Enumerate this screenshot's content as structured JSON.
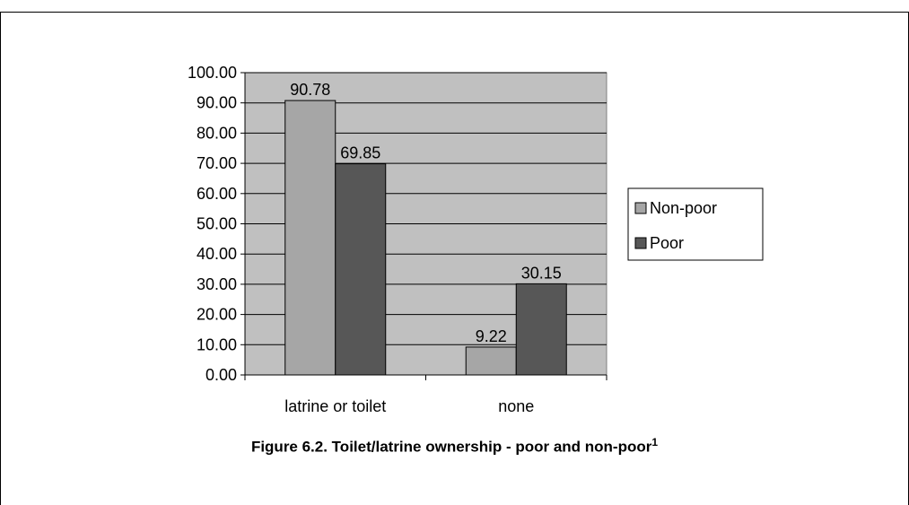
{
  "chart_data": {
    "type": "bar",
    "categories": [
      "latrine or toilet",
      "none"
    ],
    "series": [
      {
        "name": "Non-poor",
        "values": [
          90.78,
          9.22
        ],
        "color": "#a6a6a6"
      },
      {
        "name": "Poor",
        "values": [
          69.85,
          30.15
        ],
        "color": "#575757"
      }
    ],
    "ylim": [
      0,
      100
    ],
    "yticks": [
      "0.00",
      "10.00",
      "20.00",
      "30.00",
      "40.00",
      "50.00",
      "60.00",
      "70.00",
      "80.00",
      "90.00",
      "100.00"
    ],
    "data_labels": [
      "90.78",
      "69.85",
      "9.22",
      "30.15"
    ],
    "plot_background": "#c0c0c0",
    "grid": true,
    "legend_position": "right"
  },
  "caption": {
    "text": "Figure 6.2. Toilet/latrine ownership - poor and non-poor",
    "footnote_marker": "1"
  }
}
